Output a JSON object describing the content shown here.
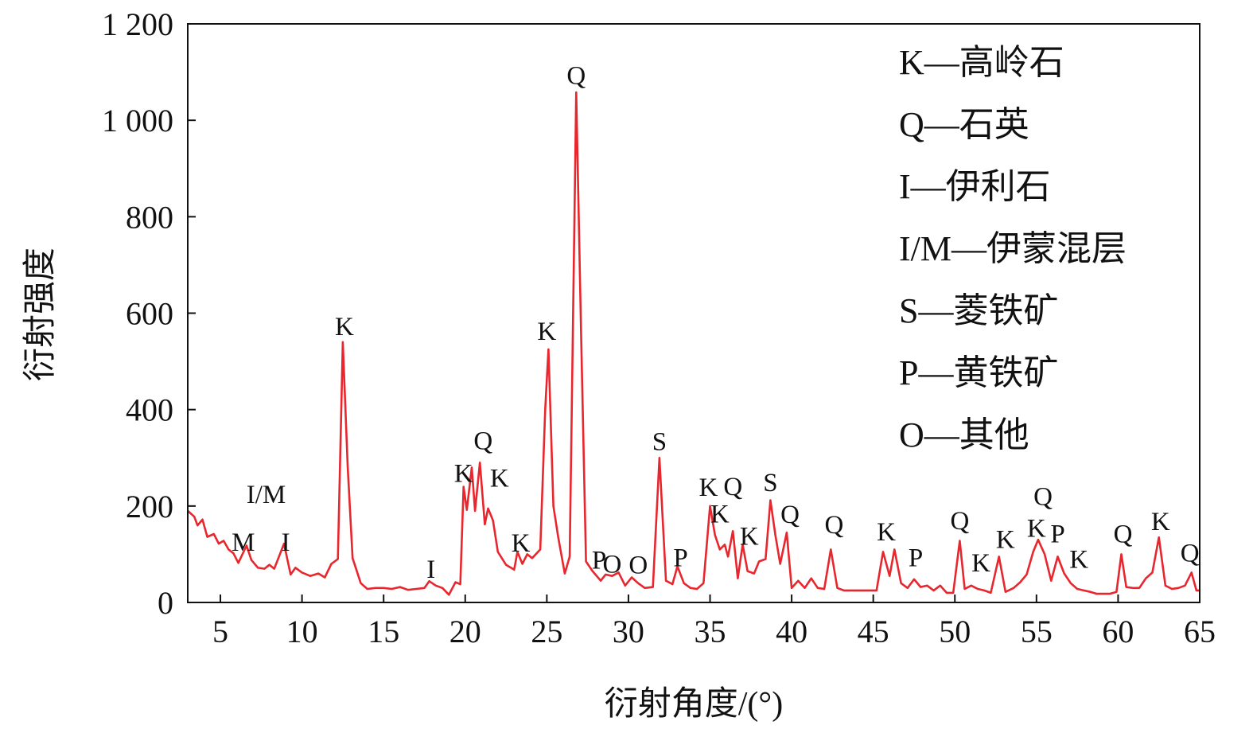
{
  "chart_data": {
    "type": "line",
    "title": "",
    "xlabel": "衍射角度/(°)",
    "ylabel": "衍射强度",
    "xlim": [
      3,
      65
    ],
    "ylim": [
      0,
      1200
    ],
    "x_ticks": [
      5,
      10,
      15,
      20,
      25,
      30,
      35,
      40,
      45,
      50,
      55,
      60,
      65
    ],
    "y_ticks": [
      0,
      200,
      400,
      600,
      800,
      1000,
      1200
    ],
    "x_tick_labels": [
      "5",
      "10",
      "15",
      "20",
      "25",
      "30",
      "35",
      "40",
      "45",
      "50",
      "55",
      "60",
      "65"
    ],
    "y_tick_labels": [
      "0",
      "200",
      "400",
      "600",
      "800",
      "1 000",
      "1 200"
    ],
    "grid": false,
    "line_color": "#e8262d",
    "legend_position": "top-right",
    "legend": [
      "K—高岭石",
      "Q—石英",
      "I—伊利石",
      "I/M—伊蒙混层",
      "S—菱铁矿",
      "P—黄铁矿",
      "O—其他"
    ],
    "series": [
      {
        "values": [
          [
            3.0,
            190
          ],
          [
            3.4,
            178
          ],
          [
            3.6,
            160
          ],
          [
            3.9,
            172
          ],
          [
            4.2,
            136
          ],
          [
            4.6,
            142
          ],
          [
            4.9,
            122
          ],
          [
            5.2,
            128
          ],
          [
            5.5,
            110
          ],
          [
            5.8,
            102
          ],
          [
            6.1,
            82
          ],
          [
            6.6,
            118
          ],
          [
            6.9,
            88
          ],
          [
            7.3,
            72
          ],
          [
            7.7,
            70
          ],
          [
            8.0,
            78
          ],
          [
            8.3,
            70
          ],
          [
            8.6,
            96
          ],
          [
            8.9,
            122
          ],
          [
            9.3,
            58
          ],
          [
            9.6,
            72
          ],
          [
            10.0,
            62
          ],
          [
            10.5,
            55
          ],
          [
            11.0,
            60
          ],
          [
            11.4,
            52
          ],
          [
            11.8,
            80
          ],
          [
            12.2,
            90
          ],
          [
            12.5,
            540
          ],
          [
            12.8,
            280
          ],
          [
            13.1,
            92
          ],
          [
            13.6,
            40
          ],
          [
            14.0,
            28
          ],
          [
            14.5,
            30
          ],
          [
            15.0,
            30
          ],
          [
            15.5,
            28
          ],
          [
            16.0,
            32
          ],
          [
            16.5,
            26
          ],
          [
            17.0,
            28
          ],
          [
            17.5,
            30
          ],
          [
            17.8,
            44
          ],
          [
            18.2,
            35
          ],
          [
            18.6,
            30
          ],
          [
            19.0,
            16
          ],
          [
            19.4,
            42
          ],
          [
            19.7,
            38
          ],
          [
            19.9,
            240
          ],
          [
            20.1,
            192
          ],
          [
            20.4,
            280
          ],
          [
            20.6,
            190
          ],
          [
            20.9,
            290
          ],
          [
            21.2,
            162
          ],
          [
            21.4,
            195
          ],
          [
            21.7,
            170
          ],
          [
            22.0,
            105
          ],
          [
            22.5,
            78
          ],
          [
            23.0,
            68
          ],
          [
            23.2,
            105
          ],
          [
            23.5,
            80
          ],
          [
            23.8,
            100
          ],
          [
            24.1,
            92
          ],
          [
            24.6,
            110
          ],
          [
            24.9,
            400
          ],
          [
            25.1,
            525
          ],
          [
            25.4,
            200
          ],
          [
            25.7,
            135
          ],
          [
            26.1,
            60
          ],
          [
            26.4,
            95
          ],
          [
            26.8,
            1058
          ],
          [
            27.1,
            560
          ],
          [
            27.4,
            85
          ],
          [
            27.8,
            65
          ],
          [
            28.3,
            45
          ],
          [
            28.6,
            58
          ],
          [
            29.0,
            55
          ],
          [
            29.4,
            62
          ],
          [
            29.8,
            35
          ],
          [
            30.2,
            52
          ],
          [
            30.6,
            40
          ],
          [
            31.0,
            30
          ],
          [
            31.5,
            32
          ],
          [
            31.9,
            300
          ],
          [
            32.3,
            45
          ],
          [
            32.7,
            38
          ],
          [
            33.0,
            75
          ],
          [
            33.4,
            40
          ],
          [
            33.8,
            30
          ],
          [
            34.2,
            28
          ],
          [
            34.6,
            40
          ],
          [
            35.0,
            200
          ],
          [
            35.3,
            140
          ],
          [
            35.6,
            110
          ],
          [
            35.9,
            120
          ],
          [
            36.1,
            95
          ],
          [
            36.4,
            148
          ],
          [
            36.7,
            50
          ],
          [
            37.0,
            120
          ],
          [
            37.3,
            65
          ],
          [
            37.7,
            60
          ],
          [
            38.0,
            85
          ],
          [
            38.4,
            90
          ],
          [
            38.7,
            212
          ],
          [
            39.0,
            140
          ],
          [
            39.3,
            80
          ],
          [
            39.7,
            145
          ],
          [
            40.0,
            30
          ],
          [
            40.4,
            45
          ],
          [
            40.8,
            30
          ],
          [
            41.2,
            50
          ],
          [
            41.6,
            30
          ],
          [
            42.0,
            28
          ],
          [
            42.4,
            110
          ],
          [
            42.8,
            30
          ],
          [
            43.2,
            25
          ],
          [
            43.7,
            25
          ],
          [
            44.2,
            25
          ],
          [
            44.7,
            25
          ],
          [
            45.2,
            25
          ],
          [
            45.6,
            105
          ],
          [
            46.0,
            55
          ],
          [
            46.3,
            110
          ],
          [
            46.7,
            40
          ],
          [
            47.1,
            30
          ],
          [
            47.5,
            48
          ],
          [
            47.9,
            32
          ],
          [
            48.3,
            35
          ],
          [
            48.7,
            25
          ],
          [
            49.1,
            35
          ],
          [
            49.5,
            20
          ],
          [
            49.9,
            20
          ],
          [
            50.3,
            128
          ],
          [
            50.6,
            28
          ],
          [
            51.0,
            35
          ],
          [
            51.4,
            28
          ],
          [
            51.8,
            25
          ],
          [
            52.2,
            20
          ],
          [
            52.7,
            95
          ],
          [
            53.1,
            22
          ],
          [
            53.6,
            30
          ],
          [
            54.0,
            42
          ],
          [
            54.4,
            58
          ],
          [
            54.8,
            105
          ],
          [
            55.1,
            130
          ],
          [
            55.5,
            100
          ],
          [
            55.9,
            45
          ],
          [
            56.3,
            95
          ],
          [
            56.7,
            60
          ],
          [
            57.1,
            40
          ],
          [
            57.5,
            28
          ],
          [
            57.9,
            25
          ],
          [
            58.3,
            22
          ],
          [
            58.7,
            18
          ],
          [
            59.1,
            18
          ],
          [
            59.5,
            18
          ],
          [
            59.9,
            22
          ],
          [
            60.2,
            100
          ],
          [
            60.5,
            32
          ],
          [
            60.9,
            30
          ],
          [
            61.3,
            30
          ],
          [
            61.7,
            50
          ],
          [
            62.1,
            62
          ],
          [
            62.5,
            135
          ],
          [
            62.9,
            35
          ],
          [
            63.3,
            28
          ],
          [
            63.7,
            30
          ],
          [
            64.1,
            35
          ],
          [
            64.5,
            62
          ],
          [
            64.8,
            25
          ],
          [
            65.0,
            25
          ]
        ]
      }
    ],
    "annotations": [
      {
        "text": "M",
        "x": 6.4,
        "y": 107
      },
      {
        "text": "I/M",
        "x": 7.8,
        "y": 206
      },
      {
        "text": "I",
        "x": 9.0,
        "y": 107
      },
      {
        "text": "K",
        "x": 12.6,
        "y": 555
      },
      {
        "text": "I",
        "x": 17.9,
        "y": 51
      },
      {
        "text": "K",
        "x": 19.9,
        "y": 250
      },
      {
        "text": "Q",
        "x": 21.1,
        "y": 318
      },
      {
        "text": "K",
        "x": 22.1,
        "y": 240
      },
      {
        "text": "K",
        "x": 23.4,
        "y": 106
      },
      {
        "text": "K",
        "x": 25.0,
        "y": 545
      },
      {
        "text": "Q",
        "x": 26.8,
        "y": 1075
      },
      {
        "text": "P",
        "x": 28.2,
        "y": 70
      },
      {
        "text": "O",
        "x": 29.0,
        "y": 62
      },
      {
        "text": "O",
        "x": 30.6,
        "y": 60
      },
      {
        "text": "S",
        "x": 31.9,
        "y": 316
      },
      {
        "text": "P",
        "x": 33.2,
        "y": 75
      },
      {
        "text": "K",
        "x": 34.9,
        "y": 221
      },
      {
        "text": "Q",
        "x": 36.4,
        "y": 223
      },
      {
        "text": "K",
        "x": 35.6,
        "y": 166
      },
      {
        "text": "K",
        "x": 37.4,
        "y": 120
      },
      {
        "text": "S",
        "x": 38.7,
        "y": 231
      },
      {
        "text": "Q",
        "x": 39.9,
        "y": 165
      },
      {
        "text": "Q",
        "x": 42.6,
        "y": 144
      },
      {
        "text": "K",
        "x": 45.8,
        "y": 129
      },
      {
        "text": "P",
        "x": 47.6,
        "y": 75
      },
      {
        "text": "Q",
        "x": 50.3,
        "y": 152
      },
      {
        "text": "K",
        "x": 51.6,
        "y": 64
      },
      {
        "text": "K",
        "x": 53.1,
        "y": 113
      },
      {
        "text": "Q",
        "x": 55.4,
        "y": 202
      },
      {
        "text": "K",
        "x": 55.0,
        "y": 136
      },
      {
        "text": "P",
        "x": 56.3,
        "y": 125
      },
      {
        "text": "K",
        "x": 57.6,
        "y": 72
      },
      {
        "text": "Q",
        "x": 60.3,
        "y": 125
      },
      {
        "text": "K",
        "x": 62.6,
        "y": 150
      },
      {
        "text": "Q",
        "x": 64.4,
        "y": 85
      }
    ]
  }
}
